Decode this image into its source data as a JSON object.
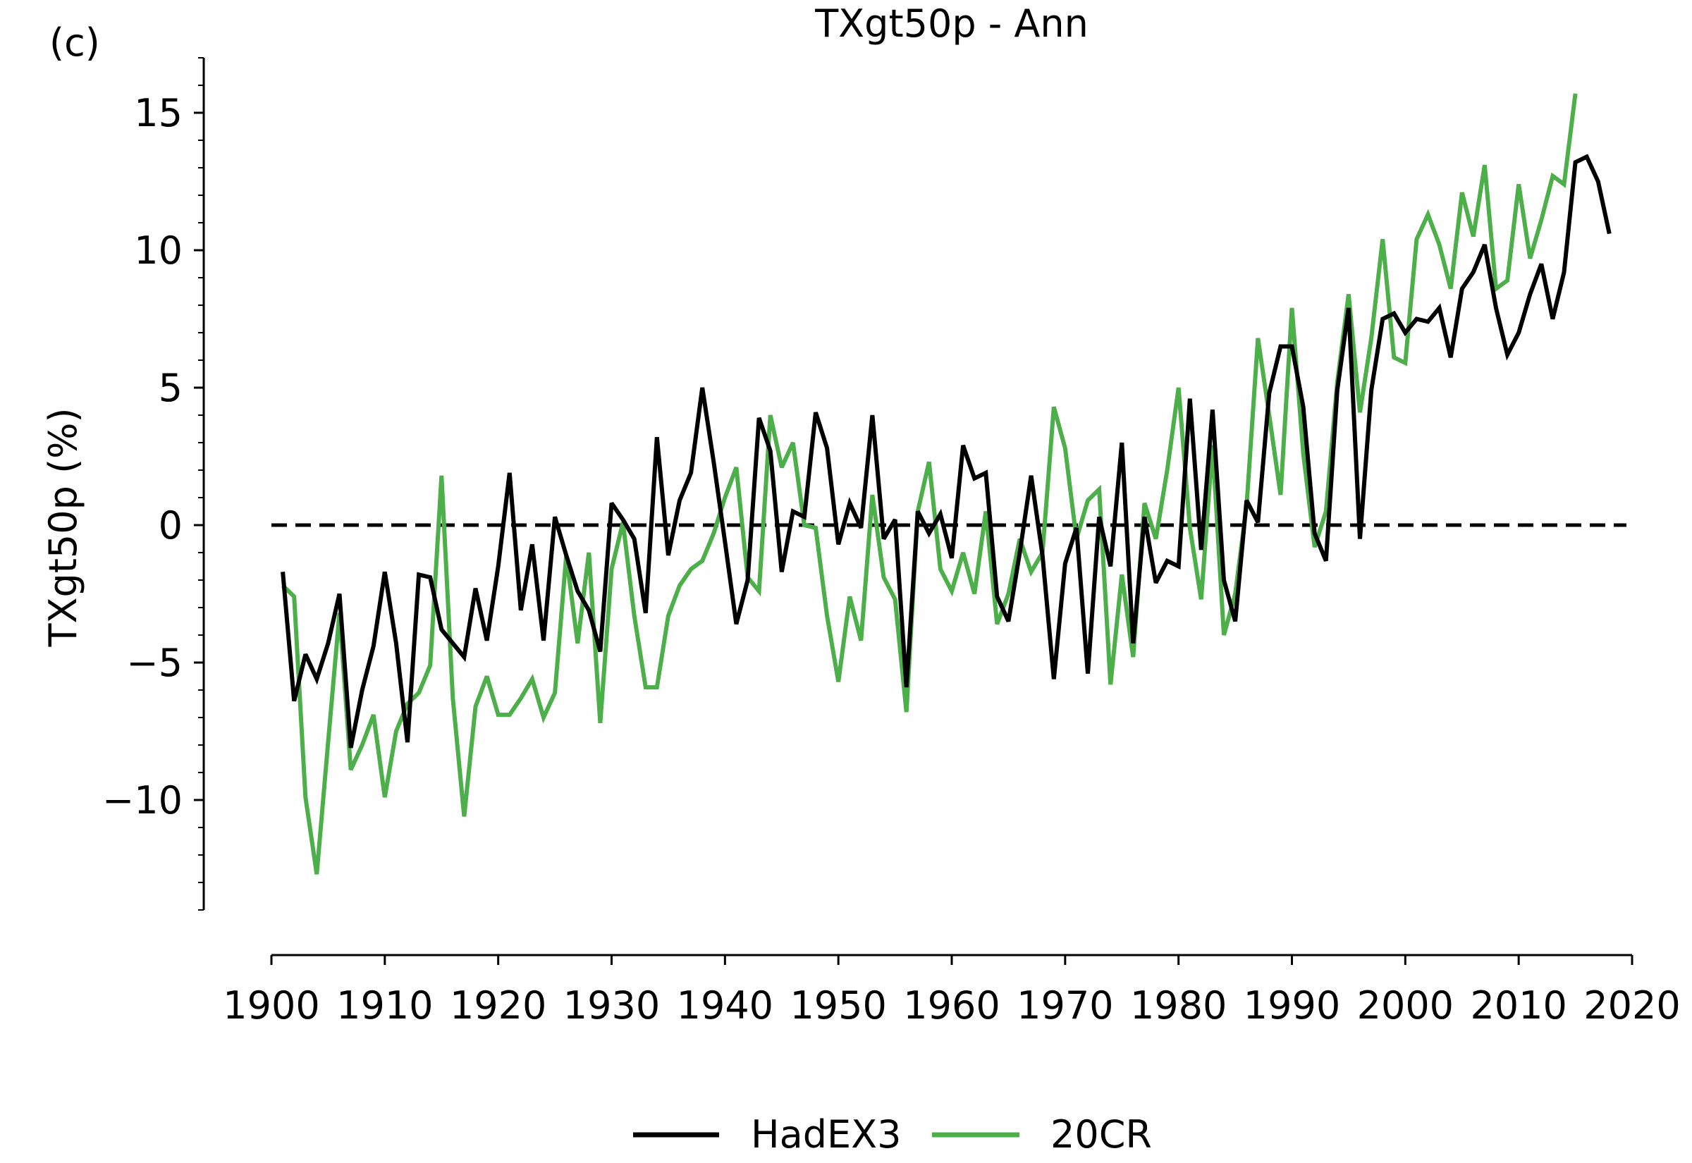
{
  "panel_label": "(c)",
  "chart_data": {
    "type": "line",
    "title": "TXgt50p - Ann",
    "xlabel": "",
    "ylabel": "TXgt50p (%)",
    "xlim": [
      1900,
      2020
    ],
    "ylim": [
      -14,
      17
    ],
    "x_ticks": [
      1900,
      1910,
      1920,
      1930,
      1940,
      1950,
      1960,
      1970,
      1980,
      1990,
      2000,
      2010,
      2020
    ],
    "y_ticks": [
      -10,
      -5,
      0,
      5,
      10,
      15
    ],
    "y_tick_labels": [
      "−10",
      "−5",
      "0",
      "5",
      "10",
      "15"
    ],
    "reference_line": {
      "y": 0,
      "style": "dashed",
      "color": "#000000"
    },
    "legend_position": "bottom-center",
    "grid": false,
    "series": [
      {
        "name": "HadEX3",
        "color": "#000000",
        "x_start": 1901,
        "values": [
          -1.7,
          -6.4,
          -4.7,
          -5.6,
          -4.3,
          -2.5,
          -8.1,
          -6.0,
          -4.4,
          -1.7,
          -4.3,
          -7.9,
          -1.8,
          -1.9,
          -3.8,
          -4.3,
          -4.8,
          -2.3,
          -4.2,
          -1.5,
          1.9,
          -3.1,
          -0.7,
          -4.2,
          0.3,
          -1.1,
          -2.4,
          -3.1,
          -4.6,
          0.8,
          0.2,
          -0.5,
          -3.2,
          3.2,
          -1.1,
          0.9,
          1.9,
          5.0,
          2.3,
          -0.6,
          -3.6,
          -2.0,
          3.9,
          2.7,
          -1.7,
          0.5,
          0.3,
          4.1,
          2.8,
          -0.7,
          0.8,
          -0.1,
          4.0,
          -0.5,
          0.2,
          -5.9,
          0.5,
          -0.3,
          0.4,
          -1.2,
          2.9,
          1.7,
          1.9,
          -2.6,
          -3.5,
          -1.0,
          1.8,
          -1.1,
          -5.6,
          -1.4,
          -0.1,
          -5.4,
          0.3,
          -1.5,
          3.0,
          -4.3,
          0.3,
          -2.1,
          -1.3,
          -1.5,
          4.6,
          -0.9,
          4.2,
          -2.0,
          -3.5,
          0.9,
          0.1,
          4.8,
          6.5,
          6.5,
          4.3,
          -0.3,
          -1.3,
          4.9,
          7.9,
          -0.5,
          4.9,
          7.5,
          7.7,
          7.0,
          7.5,
          7.4,
          7.9,
          6.1,
          8.6,
          9.2,
          10.2,
          7.9,
          6.2,
          7.0,
          8.4,
          9.5,
          7.5,
          9.2,
          13.2,
          13.4,
          12.5,
          10.6
        ]
      },
      {
        "name": "20CR",
        "color": "#4daf4a",
        "x_start": 1901,
        "values": [
          -2.2,
          -2.6,
          -9.9,
          -12.7,
          -7.9,
          -3.2,
          -8.9,
          -8.0,
          -6.9,
          -9.9,
          -7.5,
          -6.5,
          -6.1,
          -5.1,
          1.8,
          -6.3,
          -10.6,
          -6.6,
          -5.5,
          -6.9,
          -6.9,
          -6.3,
          -5.6,
          -7.0,
          -6.1,
          -1.1,
          -4.3,
          -1.0,
          -7.2,
          -1.6,
          0.1,
          -3.3,
          -5.9,
          -5.9,
          -3.3,
          -2.2,
          -1.6,
          -1.3,
          -0.3,
          1.0,
          2.1,
          -1.9,
          -2.4,
          4.0,
          2.1,
          3.0,
          0.0,
          -0.1,
          -3.3,
          -5.7,
          -2.6,
          -4.2,
          1.1,
          -1.9,
          -2.7,
          -6.8,
          0.5,
          2.3,
          -1.6,
          -2.4,
          -1.0,
          -2.5,
          0.5,
          -3.6,
          -2.5,
          -0.5,
          -1.7,
          -1.0,
          4.3,
          2.8,
          -0.5,
          0.9,
          1.3,
          -5.8,
          -1.8,
          -4.8,
          0.8,
          -0.5,
          2.0,
          5.0,
          -0.1,
          -2.7,
          2.9,
          -4.0,
          -2.5,
          0.7,
          6.8,
          4.0,
          1.1,
          7.9,
          2.6,
          -0.8,
          0.5,
          5.2,
          8.4,
          4.1,
          6.8,
          10.4,
          6.1,
          5.9,
          10.4,
          11.3,
          10.2,
          8.6,
          12.1,
          10.5,
          13.1,
          8.6,
          8.9,
          12.4,
          9.7,
          11.1,
          12.7,
          12.4,
          15.7
        ]
      }
    ]
  }
}
